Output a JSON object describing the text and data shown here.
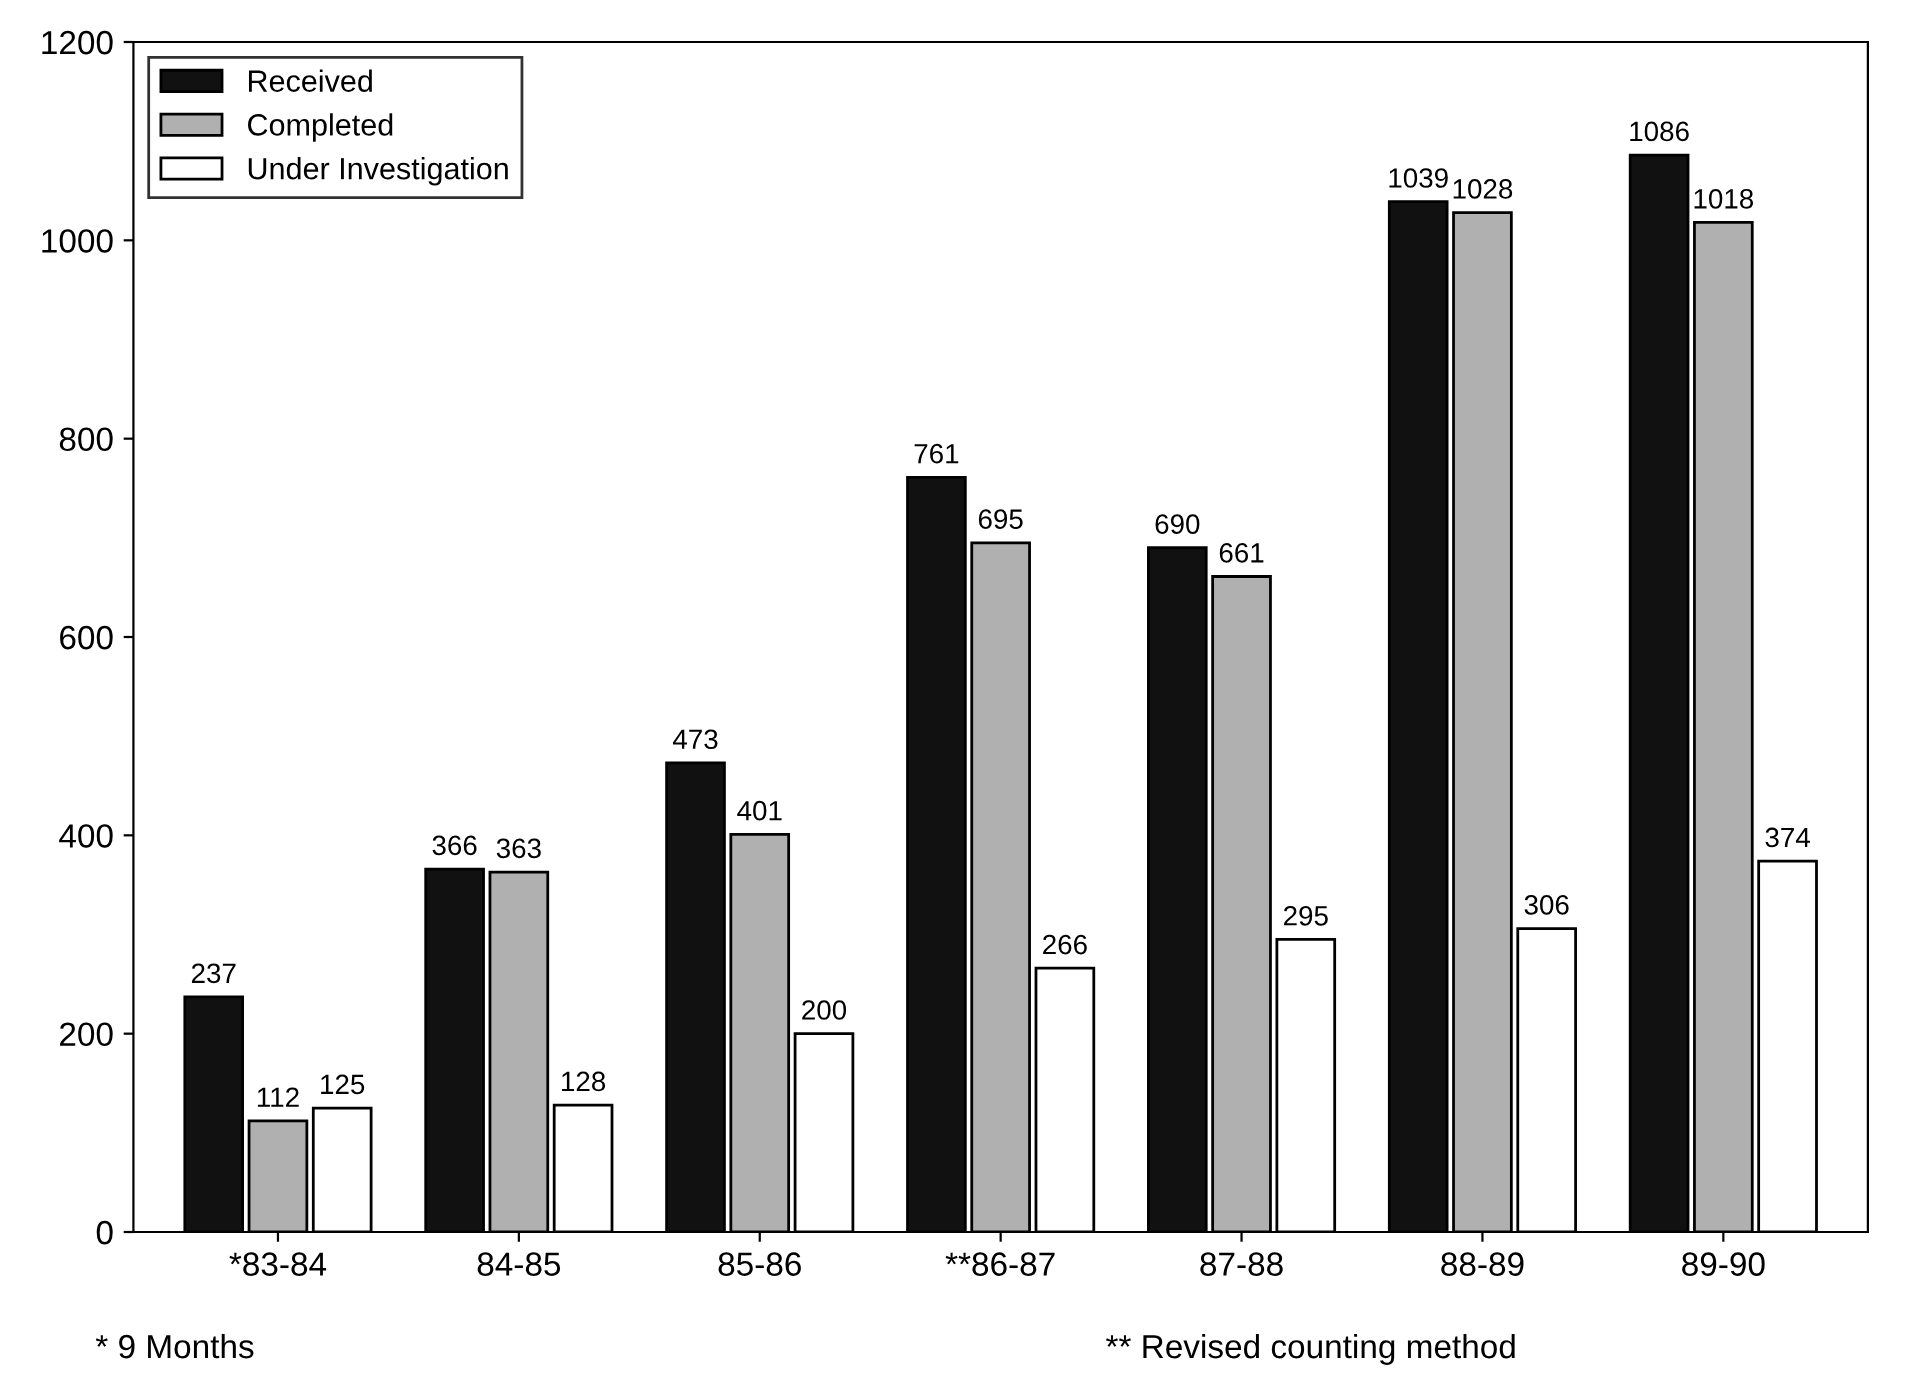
{
  "chart_data": {
    "type": "bar",
    "categories": [
      "*83-84",
      "84-85",
      "85-86",
      "**86-87",
      "87-88",
      "88-89",
      "89-90"
    ],
    "series": [
      {
        "name": "Received",
        "color": "#111111",
        "values": [
          237,
          366,
          473,
          761,
          690,
          1039,
          1086
        ]
      },
      {
        "name": "Completed",
        "color": "#b0b0b0",
        "values": [
          112,
          363,
          401,
          695,
          661,
          1028,
          1018
        ]
      },
      {
        "name": "Under Investigation",
        "color": "#ffffff",
        "values": [
          125,
          128,
          200,
          266,
          295,
          306,
          374
        ]
      }
    ],
    "ylim": [
      0,
      1200
    ],
    "yticks": [
      0,
      200,
      400,
      600,
      800,
      1000,
      1200
    ],
    "grid": false,
    "legend": "top left",
    "data_labels": true,
    "annotations": [
      "* 9 Months",
      "** Revised counting method"
    ]
  }
}
